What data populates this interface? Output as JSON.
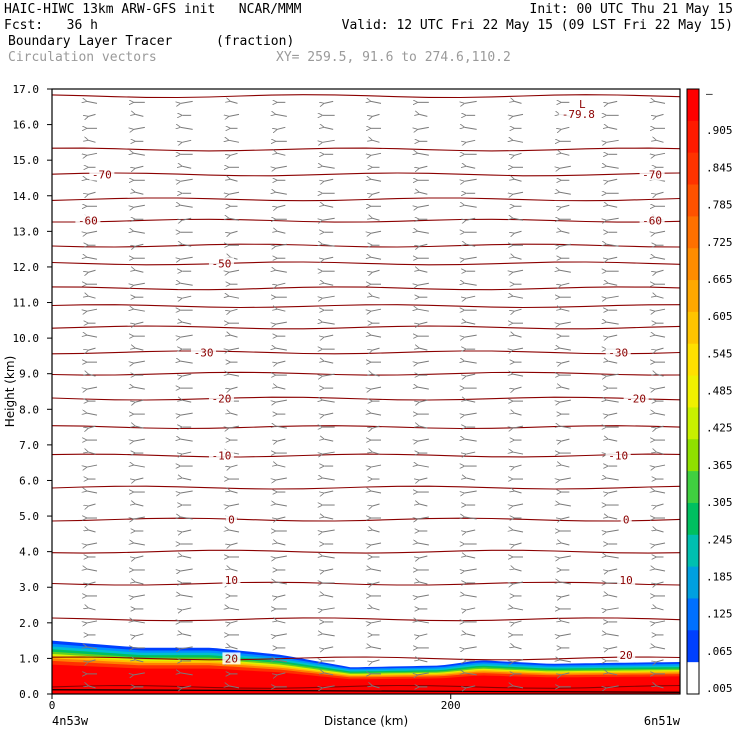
{
  "header": {
    "line1_left": "HAIC-HIWC 13km ARW-GFS init   NCAR/MMM",
    "line1_right": "Init: 00 UTC Thu 21 May 15",
    "line2_left": "Fcst:   36 h",
    "line2_right": "Valid: 12 UTC Fri 22 May 15 (09 LST Fri 22 May 15)",
    "field_name": "Boundary Layer Tracer",
    "field_units": "(fraction)",
    "vector_label": "Circulation vectors",
    "xy_label": "XY= 259.5, 91.6 to 274.6,110.2"
  },
  "chart_data": {
    "type": "heatmap",
    "ylabel": "Height (km)",
    "xlabel": "Distance (km)",
    "x_left_label": "4n53w",
    "x_right_label": "6n51w",
    "x_ticks": [
      0,
      200
    ],
    "x_range": [
      0,
      315
    ],
    "ylim": [
      0,
      17
    ],
    "y_ticks": [
      "0.0",
      "1.0",
      "2.0",
      "3.0",
      "4.0",
      "5.0",
      "6.0",
      "7.0",
      "8.0",
      "9.0",
      "10.0",
      "11.0",
      "12.0",
      "13.0",
      "14.0",
      "15.0",
      "16.0",
      "17.0"
    ],
    "colorbar": {
      "labels": [
        "–",
        ".905",
        ".845",
        ".785",
        ".725",
        ".665",
        ".605",
        ".545",
        ".485",
        ".425",
        ".365",
        ".305",
        ".245",
        ".185",
        ".125",
        ".065",
        ".005"
      ],
      "colors": [
        "#ff0000",
        "#ff1a00",
        "#ff3300",
        "#ff5200",
        "#ff7000",
        "#ff8c00",
        "#ffa800",
        "#ffc400",
        "#ffe000",
        "#f0f000",
        "#c8f000",
        "#90e000",
        "#40d040",
        "#00c060",
        "#00c0b0",
        "#00a0e0",
        "#0070ff",
        "#0040ff",
        "#ffffff"
      ]
    },
    "boundary_layer_top_km": [
      {
        "x": 0,
        "y": 1.5
      },
      {
        "x": 45,
        "y": 1.3
      },
      {
        "x": 80,
        "y": 1.3
      },
      {
        "x": 115,
        "y": 1.1
      },
      {
        "x": 150,
        "y": 0.75
      },
      {
        "x": 195,
        "y": 0.8
      },
      {
        "x": 215,
        "y": 0.95
      },
      {
        "x": 250,
        "y": 0.85
      },
      {
        "x": 315,
        "y": 0.9
      }
    ],
    "isotherm_labels": [
      {
        "value": "-79.8",
        "x": 264,
        "y": 16.3,
        "note": "L"
      },
      {
        "value": "-70",
        "x": 25,
        "y": 14.6
      },
      {
        "value": "-70",
        "x": 301,
        "y": 14.6
      },
      {
        "value": "-60",
        "x": 18,
        "y": 13.3
      },
      {
        "value": "-60",
        "x": 301,
        "y": 13.3
      },
      {
        "value": "-50",
        "x": 85,
        "y": 12.1
      },
      {
        "value": "-30",
        "x": 76,
        "y": 9.6
      },
      {
        "value": "-30",
        "x": 284,
        "y": 9.6
      },
      {
        "value": "-20",
        "x": 85,
        "y": 8.3
      },
      {
        "value": "-20",
        "x": 293,
        "y": 8.3
      },
      {
        "value": "-10",
        "x": 85,
        "y": 6.7
      },
      {
        "value": "-10",
        "x": 284,
        "y": 6.7
      },
      {
        "value": "0",
        "x": 90,
        "y": 4.9
      },
      {
        "value": "0",
        "x": 288,
        "y": 4.9
      },
      {
        "value": "10",
        "x": 90,
        "y": 3.2
      },
      {
        "value": "10",
        "x": 288,
        "y": 3.2
      },
      {
        "value": "20",
        "x": 90,
        "y": 1.0
      },
      {
        "value": "20",
        "x": 288,
        "y": 1.1
      }
    ],
    "contour_levels_km": [
      0.2,
      1.0,
      2.1,
      3.1,
      4.0,
      4.9,
      5.8,
      6.7,
      7.5,
      8.3,
      9.0,
      9.6,
      10.3,
      10.9,
      11.4,
      12.1,
      12.6,
      13.3,
      13.9,
      14.6,
      15.3,
      16.8
    ],
    "vector_direction": "easterly (arrows point left)",
    "grid": false
  },
  "colors": {
    "contour": "#8b0000",
    "vector": "#7a7a7a",
    "axis": "#000000"
  }
}
